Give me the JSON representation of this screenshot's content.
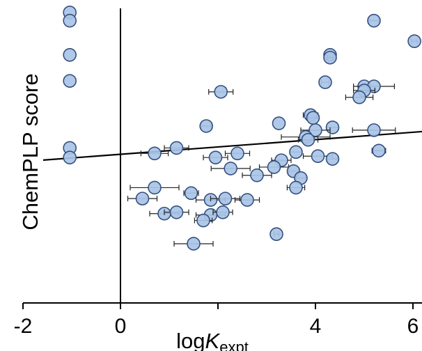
{
  "chart_data": {
    "type": "scatter",
    "xlabel": {
      "base": "log",
      "italic": "K",
      "subscript": "expt"
    },
    "ylabel": "ChemPLP score",
    "xlim": [
      -2,
      6.2
    ],
    "ylim": [
      0,
      1
    ],
    "xticks": [
      {
        "value": -2,
        "label": "-2"
      },
      {
        "value": 0,
        "label": "0"
      },
      {
        "value": 4,
        "label": "4"
      },
      {
        "value": 6,
        "label": "6"
      }
    ],
    "minor_xticks": [
      2
    ],
    "grid": false,
    "fit_line": {
      "x": [
        -2,
        6.2
      ],
      "y": [
        0.44,
        0.55
      ]
    },
    "points": [
      {
        "x": -1.04,
        "y": 0.985
      },
      {
        "x": -1.04,
        "y": 0.955
      },
      {
        "x": -1.04,
        "y": 0.83
      },
      {
        "x": -1.04,
        "y": 0.735
      },
      {
        "x": -1.04,
        "y": 0.49
      },
      {
        "x": -1.04,
        "y": 0.455
      },
      {
        "x": 5.2,
        "y": 0.955,
        "xerr": 0.1
      },
      {
        "x": 6.03,
        "y": 0.88,
        "xerr": 0.06
      },
      {
        "x": 4.3,
        "y": 0.83,
        "xerr": 0.1
      },
      {
        "x": 4.3,
        "y": 0.82,
        "xerr": 0.06
      },
      {
        "x": 4.2,
        "y": 0.73,
        "xerr": 0.08
      },
      {
        "x": 5.0,
        "y": 0.715,
        "xerr": 0.1
      },
      {
        "x": 5.2,
        "y": 0.715,
        "xerr": 0.42
      },
      {
        "x": 5.0,
        "y": 0.7,
        "xerr": 0.22
      },
      {
        "x": 4.9,
        "y": 0.675,
        "xerr": 0.28
      },
      {
        "x": 2.06,
        "y": 0.695,
        "xerr": 0.25
      },
      {
        "x": 1.76,
        "y": 0.57,
        "xerr": 0.1
      },
      {
        "x": 3.25,
        "y": 0.58
      },
      {
        "x": 3.9,
        "y": 0.61,
        "xerr": 0.15
      },
      {
        "x": 3.95,
        "y": 0.6,
        "xerr": 0.1
      },
      {
        "x": 4.35,
        "y": 0.565,
        "xerr": 0.12
      },
      {
        "x": 4.0,
        "y": 0.555,
        "xerr": 0.3
      },
      {
        "x": 3.8,
        "y": 0.53,
        "xerr": 0.5
      },
      {
        "x": 3.85,
        "y": 0.52,
        "xerr": 0.2
      },
      {
        "x": 5.2,
        "y": 0.555,
        "xerr": 0.44
      },
      {
        "x": 5.3,
        "y": 0.48,
        "xerr": 0.14
      },
      {
        "x": 4.05,
        "y": 0.46,
        "xerr": 0.3
      },
      {
        "x": 4.35,
        "y": 0.45,
        "xerr": 0.1
      },
      {
        "x": 3.6,
        "y": 0.475,
        "xerr": 0.12
      },
      {
        "x": 3.3,
        "y": 0.445,
        "xerr": 0.2
      },
      {
        "x": 3.15,
        "y": 0.42,
        "xerr": 0.3
      },
      {
        "x": 3.55,
        "y": 0.405,
        "xerr": 0.1
      },
      {
        "x": 3.7,
        "y": 0.38,
        "xerr": 0.1
      },
      {
        "x": 3.6,
        "y": 0.345,
        "xerr": 0.18
      },
      {
        "x": 3.2,
        "y": 0.175,
        "xerr": 0.05
      },
      {
        "x": 2.4,
        "y": 0.47,
        "xerr": 0.25
      },
      {
        "x": 1.95,
        "y": 0.455,
        "xerr": 0.25
      },
      {
        "x": 2.26,
        "y": 0.415,
        "xerr": 0.4
      },
      {
        "x": 2.8,
        "y": 0.39,
        "xerr": 0.3
      },
      {
        "x": 1.15,
        "y": 0.49,
        "xerr": 0.25
      },
      {
        "x": 0.7,
        "y": 0.47,
        "xerr": 0.28
      },
      {
        "x": 0.7,
        "y": 0.345,
        "xerr": 0.5
      },
      {
        "x": 0.45,
        "y": 0.305,
        "xerr": 0.3
      },
      {
        "x": 1.45,
        "y": 0.325,
        "xerr": 0.15
      },
      {
        "x": 1.85,
        "y": 0.3,
        "xerr": 0.3
      },
      {
        "x": 2.15,
        "y": 0.305,
        "xerr": 0.3
      },
      {
        "x": 2.6,
        "y": 0.3,
        "xerr": 0.25
      },
      {
        "x": 0.9,
        "y": 0.25,
        "xerr": 0.3
      },
      {
        "x": 1.15,
        "y": 0.255,
        "xerr": 0.25
      },
      {
        "x": 1.85,
        "y": 0.245,
        "xerr": 0.3
      },
      {
        "x": 2.1,
        "y": 0.255,
        "xerr": 0.2
      },
      {
        "x": 1.7,
        "y": 0.225,
        "xerr": 0.18
      },
      {
        "x": 1.5,
        "y": 0.14,
        "xerr": 0.4
      }
    ]
  }
}
